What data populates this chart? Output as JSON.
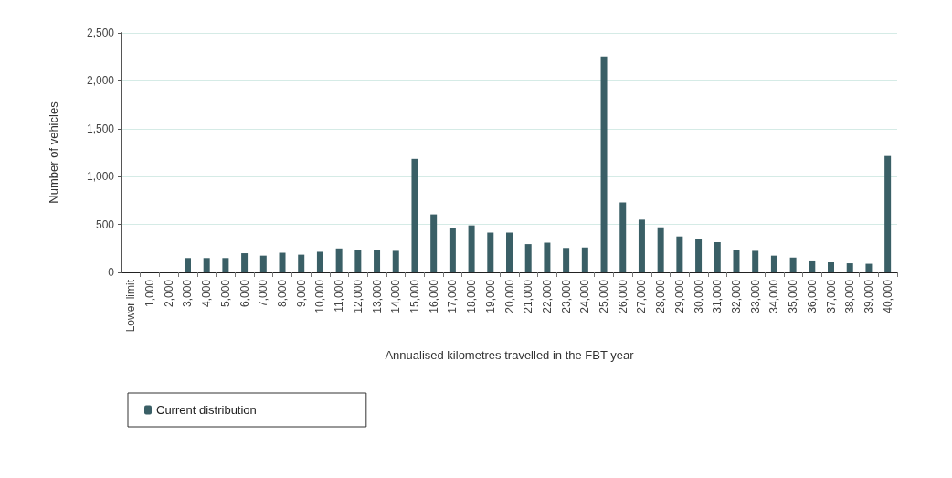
{
  "chart_data": {
    "type": "bar",
    "xlabel": "Annualised kilometres travelled in the FBT year",
    "ylabel": "Number of vehicles",
    "categories": [
      "Lower limit",
      "1,000",
      "2,000",
      "3,000",
      "4,000",
      "5,000",
      "6,000",
      "7,000",
      "8,000",
      "9,000",
      "10,000",
      "11,000",
      "12,000",
      "13,000",
      "14,000",
      "15,000",
      "16,000",
      "17,000",
      "18,000",
      "19,000",
      "20,000",
      "21,000",
      "22,000",
      "23,000",
      "24,000",
      "25,000",
      "26,000",
      "27,000",
      "28,000",
      "29,000",
      "30,000",
      "31,000",
      "32,000",
      "33,000",
      "34,000",
      "35,000",
      "36,000",
      "37,000",
      "38,000",
      "39,000",
      "40,000"
    ],
    "series": [
      {
        "name": "Current distribution",
        "color": "#3a5f66",
        "values": [
          0,
          0,
          0,
          150,
          150,
          150,
          200,
          175,
          205,
          185,
          215,
          250,
          235,
          235,
          225,
          1185,
          605,
          460,
          490,
          415,
          415,
          295,
          310,
          255,
          260,
          2255,
          730,
          550,
          470,
          375,
          345,
          315,
          230,
          225,
          175,
          155,
          115,
          105,
          95,
          90,
          1215
        ]
      }
    ],
    "ylim": [
      0,
      2500
    ],
    "yticks": [
      {
        "value": 0,
        "label": "0"
      },
      {
        "value": 500,
        "label": "500"
      },
      {
        "value": 1000,
        "label": "1,000"
      },
      {
        "value": 1500,
        "label": "1,500"
      },
      {
        "value": 2000,
        "label": "2,000"
      },
      {
        "value": 2500,
        "label": "2,500"
      }
    ],
    "grid": "y",
    "legend": "bottom left"
  }
}
